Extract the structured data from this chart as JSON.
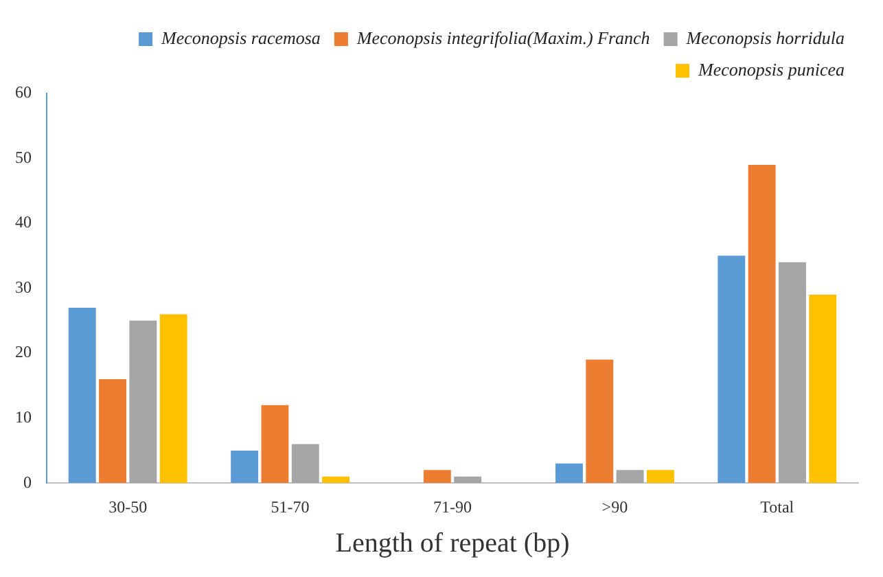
{
  "chart_data": {
    "type": "bar",
    "xlabel": "Length of repeat (bp)",
    "categories": [
      "30-50",
      "51-70",
      "71-90",
      ">90",
      "Total"
    ],
    "series": [
      {
        "name": "Meconopsis racemosa",
        "color": "#5b9bd5",
        "values": [
          27,
          5,
          0,
          3,
          35
        ]
      },
      {
        "name": "Meconopsis integrifolia(Maxim.) Franch",
        "color": "#ed7d31",
        "values": [
          16,
          12,
          2,
          19,
          49
        ]
      },
      {
        "name": "Meconopsis horridula",
        "color": "#a5a5a5",
        "values": [
          25,
          6,
          1,
          2,
          34
        ]
      },
      {
        "name": "Meconopsis punicea",
        "color": "#ffc000",
        "values": [
          26,
          1,
          0,
          2,
          29
        ]
      }
    ],
    "ylim": [
      0,
      60
    ],
    "yticks": [
      0,
      10,
      20,
      30,
      40,
      50,
      60
    ],
    "grid": false,
    "legend": "top right"
  }
}
